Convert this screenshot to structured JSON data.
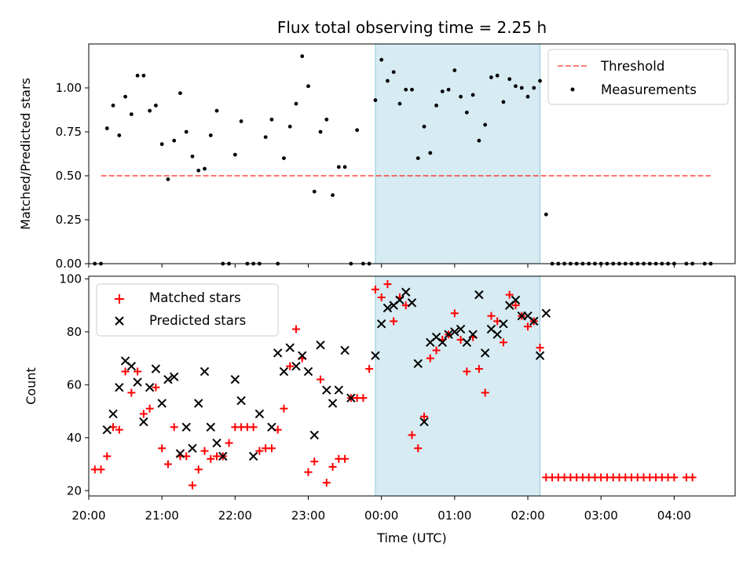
{
  "chart_data": [
    {
      "type": "scatter",
      "title": "Flux total observing time = 2.25 h",
      "xlabel": "",
      "ylabel": "Matched/Predicted stars",
      "xlim": [
        "20:00",
        "04:50"
      ],
      "ylim": [
        0,
        1.25
      ],
      "yticks": [
        "0.00",
        "0.25",
        "0.50",
        "0.75",
        "1.00"
      ],
      "shaded_span": [
        "23:55",
        "02:10"
      ],
      "shade_color": "#add8e6",
      "legend_position": "upper right",
      "threshold": {
        "name": "Threshold",
        "value": 0.5,
        "x_range": [
          "20:10",
          "04:30"
        ],
        "color": "#ff0000"
      },
      "series": [
        {
          "name": "Measurements",
          "color": "#000000",
          "x": [
            "20:05",
            "20:10",
            "20:15",
            "20:20",
            "20:25",
            "20:30",
            "20:35",
            "20:40",
            "20:45",
            "20:50",
            "20:55",
            "21:00",
            "21:05",
            "21:10",
            "21:15",
            "21:20",
            "21:25",
            "21:30",
            "21:35",
            "21:40",
            "21:45",
            "21:50",
            "21:55",
            "22:00",
            "22:05",
            "22:10",
            "22:15",
            "22:20",
            "22:25",
            "22:30",
            "22:35",
            "22:40",
            "22:45",
            "22:50",
            "22:55",
            "23:00",
            "23:05",
            "23:10",
            "23:15",
            "23:20",
            "23:25",
            "23:30",
            "23:35",
            "23:40",
            "23:45",
            "23:50",
            "23:55",
            "00:00",
            "00:05",
            "00:10",
            "00:15",
            "00:20",
            "00:25",
            "00:30",
            "00:35",
            "00:40",
            "00:45",
            "00:50",
            "00:55",
            "01:00",
            "01:05",
            "01:10",
            "01:15",
            "01:20",
            "01:25",
            "01:30",
            "01:35",
            "01:40",
            "01:45",
            "01:50",
            "01:55",
            "02:00",
            "02:05",
            "02:10",
            "02:15"
          ],
          "y": [
            0,
            0,
            0.77,
            0.9,
            0.73,
            0.95,
            0.85,
            1.07,
            1.07,
            0.87,
            0.9,
            0.68,
            0.48,
            0.7,
            0.97,
            0.75,
            0.61,
            0.53,
            0.54,
            0.73,
            0.87,
            0,
            0,
            0.62,
            0.81,
            0,
            0,
            0,
            0.72,
            0.82,
            0,
            0.6,
            0.78,
            0.91,
            1.18,
            1.01,
            0.41,
            0.75,
            0.82,
            0.39,
            0.55,
            0.55,
            0,
            0.76,
            0,
            0,
            0.93,
            1.16,
            1.04,
            1.09,
            0.91,
            0.99,
            0.99,
            0.6,
            0.78,
            0.63,
            0.9,
            0.98,
            0.99,
            1.1,
            0.95,
            0.86,
            0.96,
            0.7,
            0.79,
            1.06,
            1.07,
            0.92,
            1.05,
            1.01,
            1.0,
            0.95,
            1.0,
            1.04,
            0.28
          ]
        },
        {
          "name": "",
          "color": "#000000",
          "x": [
            "02:20",
            "02:25",
            "02:30",
            "02:35",
            "02:40",
            "02:45",
            "02:50",
            "02:55",
            "03:00",
            "03:05",
            "03:10",
            "03:15",
            "03:20",
            "03:25",
            "03:30",
            "03:35",
            "03:40",
            "03:45",
            "03:50",
            "03:55",
            "04:00",
            "04:10",
            "04:15",
            "04:25",
            "04:30"
          ],
          "y": [
            0,
            0,
            0,
            0,
            0,
            0,
            0,
            0,
            0,
            0,
            0,
            0,
            0,
            0,
            0,
            0,
            0,
            0,
            0,
            0,
            0,
            0,
            0,
            0,
            0
          ]
        }
      ]
    },
    {
      "type": "scatter",
      "title": "",
      "xlabel": "Time (UTC)",
      "ylabel": "Count",
      "xlim": [
        "20:00",
        "04:50"
      ],
      "ylim": [
        18,
        101
      ],
      "yticks": [
        "20",
        "40",
        "60",
        "80",
        "100"
      ],
      "xticks": [
        "20:00",
        "21:00",
        "22:00",
        "23:00",
        "00:00",
        "01:00",
        "02:00",
        "03:00",
        "04:00"
      ],
      "shaded_span": [
        "23:55",
        "02:10"
      ],
      "shade_color": "#add8e6",
      "legend_position": "upper left",
      "series": [
        {
          "name": "Matched stars",
          "marker": "plus",
          "color": "#ff0000",
          "x": [
            "20:05",
            "20:10",
            "20:15",
            "20:20",
            "20:25",
            "20:30",
            "20:35",
            "20:40",
            "20:45",
            "20:50",
            "20:55",
            "21:00",
            "21:05",
            "21:10",
            "21:15",
            "21:20",
            "21:25",
            "21:30",
            "21:35",
            "21:40",
            "21:45",
            "21:50",
            "21:55",
            "22:00",
            "22:05",
            "22:10",
            "22:15",
            "22:20",
            "22:25",
            "22:30",
            "22:35",
            "22:40",
            "22:45",
            "22:50",
            "22:55",
            "23:00",
            "23:05",
            "23:10",
            "23:15",
            "23:20",
            "23:25",
            "23:30",
            "23:35",
            "23:40",
            "23:45",
            "23:50",
            "23:55",
            "00:00",
            "00:05",
            "00:10",
            "00:15",
            "00:20",
            "00:25",
            "00:30",
            "00:35",
            "00:40",
            "00:45",
            "00:50",
            "00:55",
            "01:00",
            "01:05",
            "01:10",
            "01:15",
            "01:20",
            "01:25",
            "01:30",
            "01:35",
            "01:40",
            "01:45",
            "01:50",
            "01:55",
            "02:00",
            "02:05",
            "02:10",
            "02:15",
            "02:20",
            "02:25",
            "02:30",
            "02:35",
            "02:40",
            "02:45",
            "02:50",
            "02:55",
            "03:00",
            "03:05",
            "03:10",
            "03:15",
            "03:20",
            "03:25",
            "03:30",
            "03:35",
            "03:40",
            "03:45",
            "03:50",
            "03:55",
            "04:00",
            "04:10",
            "04:15"
          ],
          "y": [
            28,
            28,
            33,
            44,
            43,
            65,
            57,
            65,
            49,
            51,
            59,
            36,
            30,
            44,
            33,
            33,
            22,
            28,
            35,
            32,
            33,
            33,
            38,
            44,
            44,
            44,
            44,
            35,
            36,
            36,
            43,
            51,
            67,
            81,
            70,
            27,
            31,
            62,
            23,
            29,
            32,
            32,
            55,
            55,
            55,
            66,
            96,
            93,
            98,
            84,
            93,
            90,
            41,
            36,
            48,
            70,
            73,
            77,
            79,
            87,
            77,
            65,
            78,
            66,
            57,
            86,
            84,
            76,
            94,
            90,
            86,
            82,
            84,
            74,
            25,
            25,
            25,
            25,
            25,
            25,
            25,
            25,
            25,
            25,
            25,
            25,
            25,
            25,
            25,
            25,
            25,
            25,
            25,
            25,
            25,
            25,
            25,
            25
          ]
        },
        {
          "name": "Predicted stars",
          "marker": "x",
          "color": "#000000",
          "x": [
            "20:15",
            "20:20",
            "20:25",
            "20:30",
            "20:35",
            "20:40",
            "20:45",
            "20:50",
            "20:55",
            "21:00",
            "21:05",
            "21:10",
            "21:15",
            "21:20",
            "21:25",
            "21:30",
            "21:35",
            "21:40",
            "21:45",
            "21:50",
            "22:00",
            "22:05",
            "22:15",
            "22:20",
            "22:30",
            "22:35",
            "22:40",
            "22:45",
            "22:50",
            "22:55",
            "23:00",
            "23:05",
            "23:10",
            "23:15",
            "23:20",
            "23:25",
            "23:30",
            "23:35",
            "23:55",
            "00:00",
            "00:05",
            "00:10",
            "00:15",
            "00:20",
            "00:25",
            "00:30",
            "00:35",
            "00:40",
            "00:45",
            "00:50",
            "00:55",
            "01:00",
            "01:05",
            "01:10",
            "01:15",
            "01:20",
            "01:25",
            "01:30",
            "01:35",
            "01:40",
            "01:45",
            "01:50",
            "01:55",
            "02:00",
            "02:05",
            "02:10",
            "02:15"
          ],
          "y": [
            43,
            49,
            59,
            69,
            67,
            61,
            46,
            59,
            66,
            53,
            62,
            63,
            34,
            44,
            36,
            53,
            65,
            44,
            38,
            33,
            62,
            54,
            33,
            49,
            44,
            72,
            65,
            74,
            67,
            71,
            65,
            41,
            75,
            58,
            53,
            58,
            73,
            55,
            71,
            83,
            89,
            90,
            92,
            95,
            91,
            68,
            46,
            76,
            78,
            76,
            79,
            80,
            81,
            76,
            79,
            94,
            72,
            81,
            79,
            83,
            90,
            92,
            86,
            86,
            84,
            71,
            87
          ]
        }
      ]
    }
  ]
}
